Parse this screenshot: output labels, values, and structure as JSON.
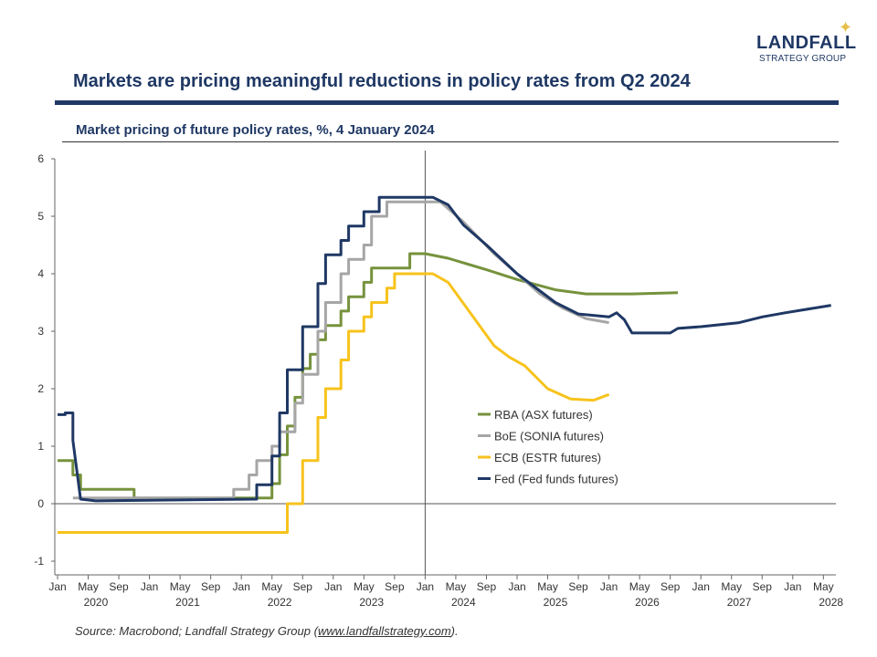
{
  "logo": {
    "name": "LANDFALL",
    "tagline": "STRATEGY GROUP"
  },
  "title": "Markets are pricing meaningful reductions in policy rates from Q2 2024",
  "source": {
    "prefix": "Source: Macrobond; Landfall Strategy Group (",
    "link": "www.landfallstrategy.com",
    "suffix": ")."
  },
  "chart_data": {
    "type": "line",
    "title": "Market pricing of future policy rates, %, 4 January 2024",
    "xlabel": "",
    "ylabel": "",
    "ylim": [
      -1,
      6
    ],
    "xlim": [
      "2020-01",
      "2028-06"
    ],
    "yticks": [
      "-1",
      "0",
      "1",
      "2",
      "3",
      "4",
      "5",
      "6"
    ],
    "xticks": {
      "months": [
        "Jan",
        "May",
        "Sep"
      ],
      "years": [
        "2020",
        "2021",
        "2022",
        "2023",
        "2024",
        "2025",
        "2026",
        "2027",
        "2028"
      ]
    },
    "reference_line": "2024-01",
    "grid": false,
    "legend_position": "center-right",
    "series": [
      {
        "name": "RBA (ASX futures)",
        "color": "#76923c",
        "points": [
          [
            "2020-01",
            0.75
          ],
          [
            "2020-03",
            0.75
          ],
          [
            "2020-03",
            0.5
          ],
          [
            "2020-04",
            0.5
          ],
          [
            "2020-04",
            0.25
          ],
          [
            "2020-11",
            0.25
          ],
          [
            "2020-11",
            0.1
          ],
          [
            "2022-05",
            0.1
          ],
          [
            "2022-05",
            0.35
          ],
          [
            "2022-06",
            0.35
          ],
          [
            "2022-06",
            0.85
          ],
          [
            "2022-07",
            0.85
          ],
          [
            "2022-07",
            1.35
          ],
          [
            "2022-08",
            1.35
          ],
          [
            "2022-08",
            1.85
          ],
          [
            "2022-09",
            1.85
          ],
          [
            "2022-09",
            2.35
          ],
          [
            "2022-10",
            2.35
          ],
          [
            "2022-10",
            2.6
          ],
          [
            "2022-11",
            2.6
          ],
          [
            "2022-11",
            2.85
          ],
          [
            "2022-12",
            2.85
          ],
          [
            "2022-12",
            3.1
          ],
          [
            "2023-02",
            3.1
          ],
          [
            "2023-02",
            3.35
          ],
          [
            "2023-03",
            3.35
          ],
          [
            "2023-03",
            3.6
          ],
          [
            "2023-05",
            3.6
          ],
          [
            "2023-05",
            3.85
          ],
          [
            "2023-06",
            3.85
          ],
          [
            "2023-06",
            4.1
          ],
          [
            "2023-11",
            4.1
          ],
          [
            "2023-11",
            4.35
          ],
          [
            "2024-01",
            4.35
          ],
          [
            "2024-04",
            4.27
          ],
          [
            "2024-09",
            4.07
          ],
          [
            "2025-01",
            3.9
          ],
          [
            "2025-06",
            3.72
          ],
          [
            "2025-10",
            3.65
          ],
          [
            "2026-04",
            3.65
          ],
          [
            "2026-10",
            3.67
          ]
        ]
      },
      {
        "name": "BoE (SONIA futures)",
        "color": "#a6a6a6",
        "points": [
          [
            "2020-03",
            0.1
          ],
          [
            "2021-12",
            0.1
          ],
          [
            "2021-12",
            0.25
          ],
          [
            "2022-02",
            0.25
          ],
          [
            "2022-02",
            0.5
          ],
          [
            "2022-03",
            0.5
          ],
          [
            "2022-03",
            0.75
          ],
          [
            "2022-05",
            0.75
          ],
          [
            "2022-05",
            1.0
          ],
          [
            "2022-06",
            1.0
          ],
          [
            "2022-06",
            1.25
          ],
          [
            "2022-08",
            1.25
          ],
          [
            "2022-08",
            1.75
          ],
          [
            "2022-09",
            1.75
          ],
          [
            "2022-09",
            2.25
          ],
          [
            "2022-11",
            2.25
          ],
          [
            "2022-11",
            3.0
          ],
          [
            "2022-12",
            3.0
          ],
          [
            "2022-12",
            3.5
          ],
          [
            "2023-02",
            3.5
          ],
          [
            "2023-02",
            4.0
          ],
          [
            "2023-03",
            4.0
          ],
          [
            "2023-03",
            4.25
          ],
          [
            "2023-05",
            4.25
          ],
          [
            "2023-05",
            4.5
          ],
          [
            "2023-06",
            4.5
          ],
          [
            "2023-06",
            5.0
          ],
          [
            "2023-08",
            5.0
          ],
          [
            "2023-08",
            5.25
          ],
          [
            "2024-03",
            5.25
          ],
          [
            "2024-06",
            4.9
          ],
          [
            "2024-10",
            4.35
          ],
          [
            "2025-01",
            4.0
          ],
          [
            "2025-04",
            3.65
          ],
          [
            "2025-07",
            3.4
          ],
          [
            "2025-10",
            3.22
          ],
          [
            "2026-01",
            3.15
          ]
        ]
      },
      {
        "name": "ECB (ESTR futures)",
        "color": "#f7c31c",
        "points": [
          [
            "2020-01",
            -0.5
          ],
          [
            "2022-07",
            -0.5
          ],
          [
            "2022-07",
            0.0
          ],
          [
            "2022-09",
            0.0
          ],
          [
            "2022-09",
            0.75
          ],
          [
            "2022-11",
            0.75
          ],
          [
            "2022-11",
            1.5
          ],
          [
            "2022-12",
            1.5
          ],
          [
            "2022-12",
            2.0
          ],
          [
            "2023-02",
            2.0
          ],
          [
            "2023-02",
            2.5
          ],
          [
            "2023-03",
            2.5
          ],
          [
            "2023-03",
            3.0
          ],
          [
            "2023-05",
            3.0
          ],
          [
            "2023-05",
            3.25
          ],
          [
            "2023-06",
            3.25
          ],
          [
            "2023-06",
            3.5
          ],
          [
            "2023-08",
            3.5
          ],
          [
            "2023-08",
            3.75
          ],
          [
            "2023-09",
            3.75
          ],
          [
            "2023-09",
            4.0
          ],
          [
            "2024-02",
            4.0
          ],
          [
            "2024-04",
            3.85
          ],
          [
            "2024-07",
            3.3
          ],
          [
            "2024-10",
            2.75
          ],
          [
            "2024-12",
            2.55
          ],
          [
            "2025-02",
            2.4
          ],
          [
            "2025-05",
            2.0
          ],
          [
            "2025-08",
            1.82
          ],
          [
            "2025-11",
            1.8
          ],
          [
            "2026-01",
            1.9
          ]
        ]
      },
      {
        "name": "Fed (Fed funds futures)",
        "color": "#1f3864",
        "points": [
          [
            "2020-01",
            1.55
          ],
          [
            "2020-02",
            1.55
          ],
          [
            "2020-02",
            1.58
          ],
          [
            "2020-03",
            1.58
          ],
          [
            "2020-03",
            1.1
          ],
          [
            "2020-04",
            0.08
          ],
          [
            "2020-06",
            0.05
          ],
          [
            "2022-03",
            0.08
          ],
          [
            "2022-03",
            0.33
          ],
          [
            "2022-05",
            0.33
          ],
          [
            "2022-05",
            0.83
          ],
          [
            "2022-06",
            0.83
          ],
          [
            "2022-06",
            1.58
          ],
          [
            "2022-07",
            1.58
          ],
          [
            "2022-07",
            2.33
          ],
          [
            "2022-09",
            2.33
          ],
          [
            "2022-09",
            3.08
          ],
          [
            "2022-11",
            3.08
          ],
          [
            "2022-11",
            3.83
          ],
          [
            "2022-12",
            3.83
          ],
          [
            "2022-12",
            4.33
          ],
          [
            "2023-02",
            4.33
          ],
          [
            "2023-02",
            4.58
          ],
          [
            "2023-03",
            4.58
          ],
          [
            "2023-03",
            4.83
          ],
          [
            "2023-05",
            4.83
          ],
          [
            "2023-05",
            5.08
          ],
          [
            "2023-07",
            5.08
          ],
          [
            "2023-07",
            5.33
          ],
          [
            "2024-02",
            5.33
          ],
          [
            "2024-04",
            5.2
          ],
          [
            "2024-06",
            4.85
          ],
          [
            "2024-09",
            4.5
          ],
          [
            "2025-01",
            4.0
          ],
          [
            "2025-06",
            3.5
          ],
          [
            "2025-09",
            3.3
          ],
          [
            "2026-01",
            3.25
          ],
          [
            "2026-02",
            3.32
          ],
          [
            "2026-03",
            3.2
          ],
          [
            "2026-04",
            2.97
          ],
          [
            "2026-09",
            2.97
          ],
          [
            "2026-10",
            3.05
          ],
          [
            "2027-01",
            3.08
          ],
          [
            "2027-06",
            3.15
          ],
          [
            "2027-09",
            3.25
          ],
          [
            "2027-12",
            3.32
          ],
          [
            "2028-06",
            3.45
          ]
        ]
      }
    ]
  }
}
